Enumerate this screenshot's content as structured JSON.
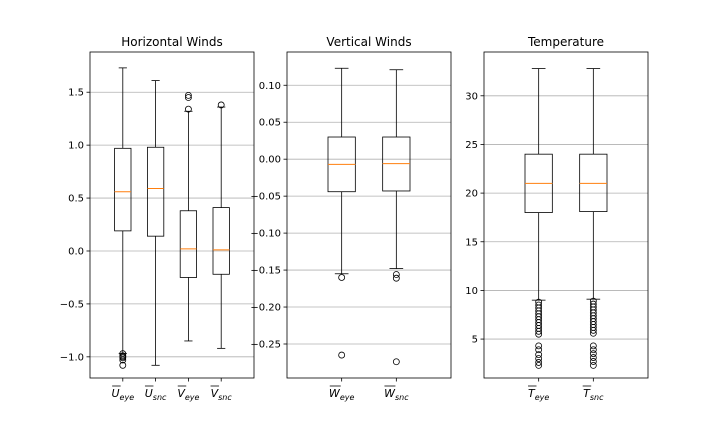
{
  "chart_data": [
    {
      "type": "box",
      "title": "Horizontal Winds",
      "ylim": [
        -1.2,
        1.88
      ],
      "yticks": [
        -1.0,
        -0.5,
        0.0,
        0.5,
        1.0,
        1.5
      ],
      "ytick_labels": [
        "−1.0",
        "−0.5",
        "0.0",
        "0.5",
        "1.0",
        "1.5"
      ],
      "grid": true,
      "boxes": [
        {
          "base": "U",
          "sub": "eye",
          "whislo": -0.97,
          "q1": 0.19,
          "med": 0.56,
          "q3": 0.97,
          "whishi": 1.73,
          "fliers": [
            -0.97,
            -0.99,
            -1.0,
            -1.01,
            -1.03,
            -1.08
          ]
        },
        {
          "base": "U",
          "sub": "snc",
          "whislo": -1.08,
          "q1": 0.14,
          "med": 0.59,
          "q3": 0.98,
          "whishi": 1.61,
          "fliers": []
        },
        {
          "base": "V",
          "sub": "eye",
          "whislo": -0.85,
          "q1": -0.25,
          "med": 0.02,
          "q3": 0.38,
          "whishi": 1.32,
          "fliers": [
            1.34,
            1.45,
            1.47
          ]
        },
        {
          "base": "V",
          "sub": "snc",
          "whislo": -0.92,
          "q1": -0.22,
          "med": 0.01,
          "q3": 0.41,
          "whishi": 1.36,
          "fliers": [
            1.38
          ]
        }
      ]
    },
    {
      "type": "box",
      "title": "Vertical Winds",
      "ylim": [
        -0.296,
        0.145
      ],
      "yticks": [
        -0.25,
        -0.2,
        -0.15,
        -0.1,
        -0.05,
        0.0,
        0.05,
        0.1
      ],
      "ytick_labels": [
        "−0.25",
        "−0.20",
        "−0.15",
        "−0.10",
        "−0.05",
        "0.00",
        "0.05",
        "0.10"
      ],
      "grid": true,
      "boxes": [
        {
          "base": "W",
          "sub": "eye",
          "whislo": -0.155,
          "q1": -0.044,
          "med": -0.007,
          "q3": 0.03,
          "whishi": 0.123,
          "fliers": [
            -0.16,
            -0.265
          ]
        },
        {
          "base": "W",
          "sub": "snc",
          "whislo": -0.148,
          "q1": -0.043,
          "med": -0.006,
          "q3": 0.03,
          "whishi": 0.121,
          "fliers": [
            -0.156,
            -0.161,
            -0.274
          ]
        }
      ]
    },
    {
      "type": "box",
      "title": "Temperature",
      "ylim": [
        1.0,
        34.5
      ],
      "yticks": [
        5,
        10,
        15,
        20,
        25,
        30
      ],
      "ytick_labels": [
        "5",
        "10",
        "15",
        "20",
        "25",
        "30"
      ],
      "grid": true,
      "boxes": [
        {
          "base": "T",
          "sub": "eye",
          "whislo": 9.0,
          "q1": 18.0,
          "med": 21.0,
          "q3": 24.0,
          "whishi": 32.8,
          "fliers": [
            8.8,
            8.5,
            8.2,
            7.9,
            7.6,
            7.3,
            7.0,
            6.7,
            6.4,
            6.1,
            5.8,
            5.5,
            4.3,
            3.9,
            3.4,
            3.0,
            2.6,
            2.3
          ]
        },
        {
          "base": "T",
          "sub": "snc",
          "whislo": 9.1,
          "q1": 18.1,
          "med": 21.0,
          "q3": 24.0,
          "whishi": 32.8,
          "fliers": [
            8.9,
            8.6,
            8.3,
            8.0,
            7.7,
            7.4,
            7.1,
            6.8,
            6.5,
            6.2,
            5.9,
            5.6,
            4.3,
            3.9,
            3.5,
            3.1,
            2.7,
            2.3
          ]
        }
      ]
    }
  ]
}
